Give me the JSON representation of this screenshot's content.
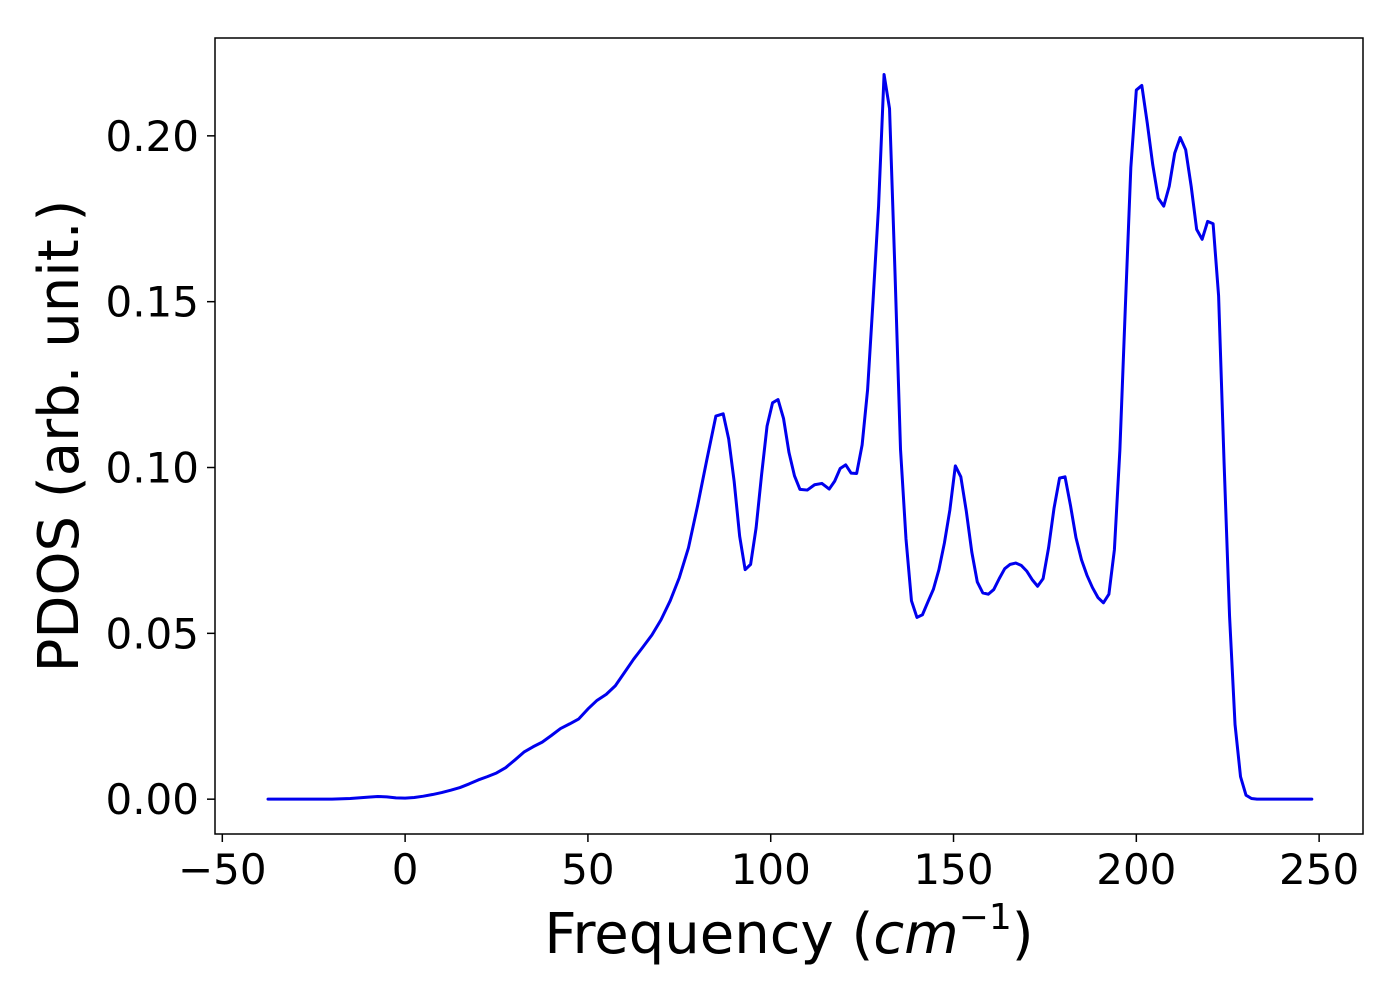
{
  "chart_data": {
    "type": "line",
    "title": "",
    "xlabel": "Frequency (cm^-1)",
    "xlabel_text": "Frequency (",
    "xlabel_unit": "cm",
    "xlabel_exponent": "−1",
    "xlabel_close": ")",
    "ylabel": "PDOS (arb. unit.)",
    "xlim": [
      -52,
      262
    ],
    "ylim": [
      -0.0105,
      0.2295
    ],
    "x_ticks": [
      -50,
      0,
      50,
      100,
      150,
      200,
      250
    ],
    "x_tick_labels": [
      "−50",
      "0",
      "50",
      "100",
      "150",
      "200",
      "250"
    ],
    "y_ticks": [
      0.0,
      0.05,
      0.1,
      0.15,
      0.2
    ],
    "y_tick_labels": [
      "0.00",
      "0.05",
      "0.10",
      "0.15",
      "0.20"
    ],
    "grid": false,
    "legend": "none",
    "series": [
      {
        "color": "#0000ee",
        "x": [
          -37.5,
          -20,
          -15,
          -10,
          -7.5,
          -5,
          -2.5,
          0,
          2.5,
          5,
          7.5,
          10,
          12.5,
          15,
          17.5,
          20,
          22.5,
          25,
          27.5,
          30,
          32.5,
          35,
          37.5,
          40,
          42.5,
          45,
          47.5,
          50,
          52.5,
          55,
          57.5,
          60,
          62.5,
          65,
          67.5,
          70,
          72.5,
          75,
          77.5,
          80,
          82.5,
          85,
          87,
          88.5,
          90,
          91.5,
          93,
          94.5,
          96,
          97.5,
          99,
          100.5,
          102,
          103.5,
          105,
          106.5,
          108,
          110,
          112,
          114,
          116,
          117.5,
          119,
          120.5,
          122,
          123.5,
          125,
          126.5,
          128,
          129.5,
          131,
          132.5,
          134,
          135.5,
          137,
          138.5,
          140,
          141.5,
          143,
          144.5,
          146,
          147.5,
          149,
          150.5,
          152,
          153.5,
          155,
          156.5,
          158,
          159.5,
          161,
          162.5,
          164,
          165.5,
          167,
          168.5,
          170,
          171.5,
          173,
          174.5,
          176,
          177.5,
          179,
          180.5,
          182,
          183.5,
          185,
          186.5,
          188,
          189.5,
          191,
          192.5,
          194,
          195.5,
          197,
          198.5,
          200,
          201.5,
          203,
          204.5,
          206,
          207.5,
          209,
          210.5,
          212,
          213.5,
          215,
          216.5,
          218,
          219.5,
          221,
          222.5,
          224,
          225.5,
          227,
          228.5,
          230,
          231.5,
          233,
          240,
          248
        ],
        "y": [
          0.0,
          0.0,
          0.0002,
          0.0006,
          0.0008,
          0.0007,
          0.0004,
          0.0003,
          0.0005,
          0.0009,
          0.0014,
          0.002,
          0.0027,
          0.0035,
          0.0046,
          0.0058,
          0.0068,
          0.0079,
          0.0095,
          0.0118,
          0.0142,
          0.0158,
          0.0172,
          0.0192,
          0.0213,
          0.0227,
          0.0242,
          0.0272,
          0.0298,
          0.0316,
          0.0342,
          0.0382,
          0.0422,
          0.0458,
          0.0495,
          0.0541,
          0.0598,
          0.0668,
          0.0758,
          0.0885,
          0.1022,
          0.1155,
          0.1162,
          0.1086,
          0.0958,
          0.0793,
          0.0692,
          0.0708,
          0.0818,
          0.0978,
          0.1125,
          0.1195,
          0.1205,
          0.1148,
          0.1045,
          0.0975,
          0.0934,
          0.0932,
          0.0948,
          0.0952,
          0.0935,
          0.0959,
          0.0997,
          0.1008,
          0.0983,
          0.0982,
          0.1068,
          0.1235,
          0.1505,
          0.1788,
          0.2185,
          0.2082,
          0.1585,
          0.1055,
          0.0785,
          0.0598,
          0.0548,
          0.0556,
          0.0595,
          0.0633,
          0.0692,
          0.0772,
          0.0872,
          0.1005,
          0.0972,
          0.0868,
          0.0745,
          0.0655,
          0.0622,
          0.0618,
          0.0632,
          0.0665,
          0.0695,
          0.0708,
          0.0712,
          0.0705,
          0.0688,
          0.0662,
          0.0642,
          0.0665,
          0.0758,
          0.0878,
          0.0968,
          0.0972,
          0.0885,
          0.0788,
          0.0722,
          0.0675,
          0.0638,
          0.0608,
          0.0592,
          0.0618,
          0.0752,
          0.1052,
          0.1485,
          0.1905,
          0.2138,
          0.2152,
          0.2038,
          0.1912,
          0.1812,
          0.1788,
          0.1848,
          0.1948,
          0.1995,
          0.1958,
          0.1848,
          0.1718,
          0.1688,
          0.1742,
          0.1735,
          0.1518,
          0.1015,
          0.0552,
          0.0225,
          0.0068,
          0.0012,
          0.0002,
          0.0,
          0.0,
          0.0
        ]
      }
    ]
  }
}
